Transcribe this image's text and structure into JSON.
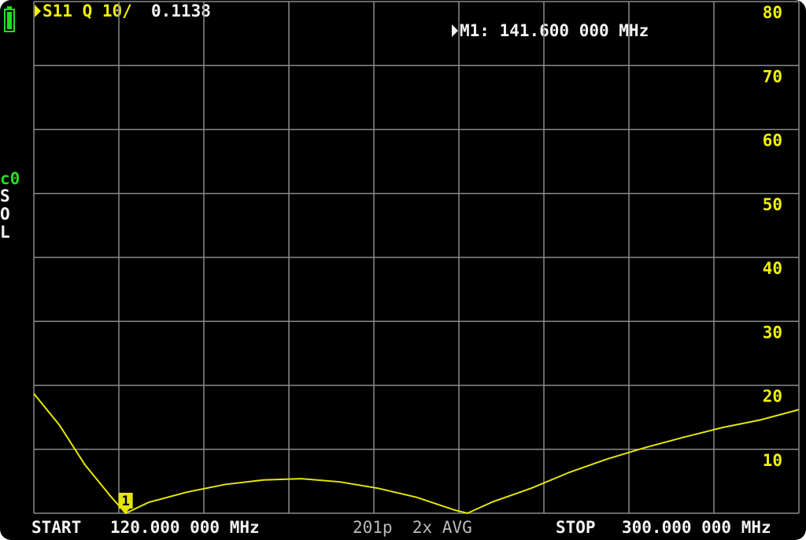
{
  "chart_data": {
    "type": "line",
    "trace_label": "S11 Q 10/",
    "trace_value": "0.1138",
    "marker_readout": "M1: 141.600 000 MHz",
    "marker_label": "1",
    "cal_status": "c0",
    "cal_flags": [
      "S",
      "O",
      "L"
    ],
    "start_label": "START",
    "start_value": "120.000 000 MHz",
    "sweep_info": "201p  2x AVG",
    "stop_label": "STOP",
    "stop_value": "300.000 000 MHz",
    "xlim": [
      120,
      300
    ],
    "ylim": [
      0,
      80
    ],
    "yticks": [
      10,
      20,
      30,
      40,
      50,
      60,
      70,
      80
    ],
    "grid": true,
    "x": [
      120,
      126,
      132,
      138,
      141.6,
      147,
      156,
      165,
      174,
      183,
      192,
      201,
      210,
      219,
      222,
      228,
      237,
      246,
      255,
      264,
      273,
      282,
      291,
      300
    ],
    "series": [
      {
        "color": "#e6e600",
        "values": [
          18.7,
          13.8,
          7.6,
          2.7,
          0,
          1.7,
          3.3,
          4.5,
          5.2,
          5.4,
          4.9,
          3.9,
          2.5,
          0.5,
          0,
          1.8,
          3.9,
          6.4,
          8.5,
          10.3,
          11.9,
          13.4,
          14.6,
          16.2
        ]
      }
    ]
  }
}
